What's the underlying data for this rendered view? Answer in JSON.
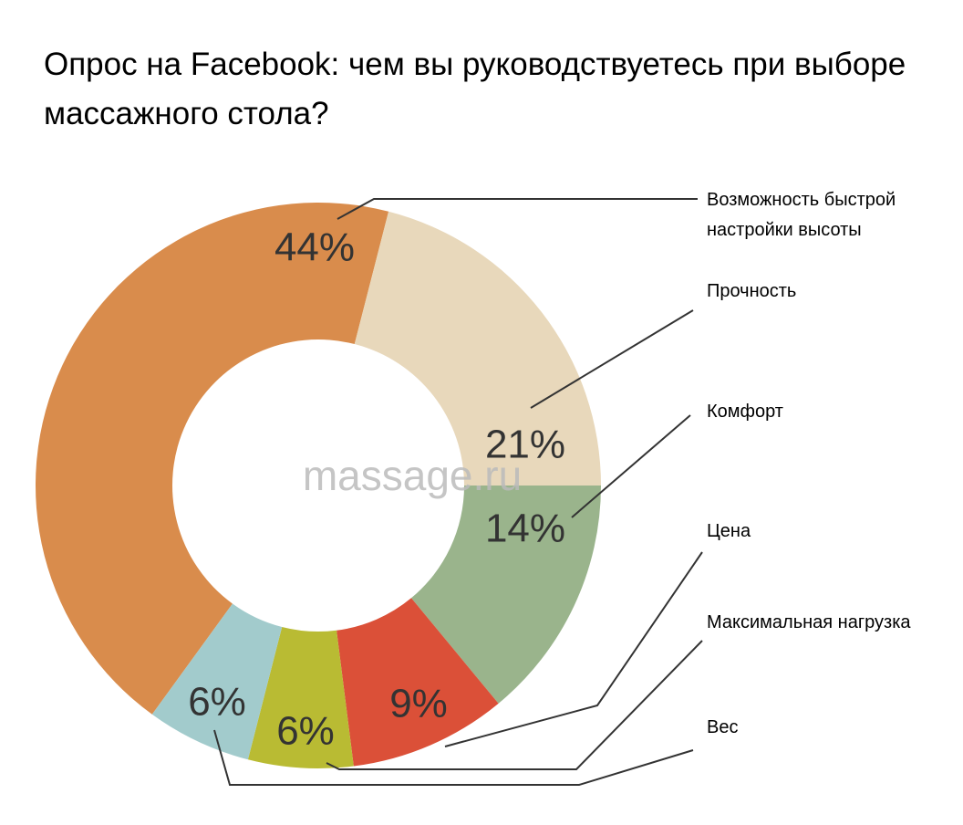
{
  "chart_data": {
    "type": "donut",
    "title": "Опрос на Facebook: чем вы руководствуетесь при выборе массажного стола?",
    "watermark": "massage.ru",
    "categories": [
      "Возможность быстрой настройки высоты",
      "Прочность",
      "Комфорт",
      "Цена",
      "Максимальная нагрузка",
      "Вес"
    ],
    "values": [
      44,
      21,
      14,
      9,
      6,
      6
    ],
    "value_labels": [
      "44%",
      "21%",
      "14%",
      "9%",
      "6%",
      "6%"
    ],
    "colors": [
      "#d98c4c",
      "#e8d8bb",
      "#9ab48c",
      "#db5038",
      "#b9bb33",
      "#a2cbcc"
    ]
  }
}
